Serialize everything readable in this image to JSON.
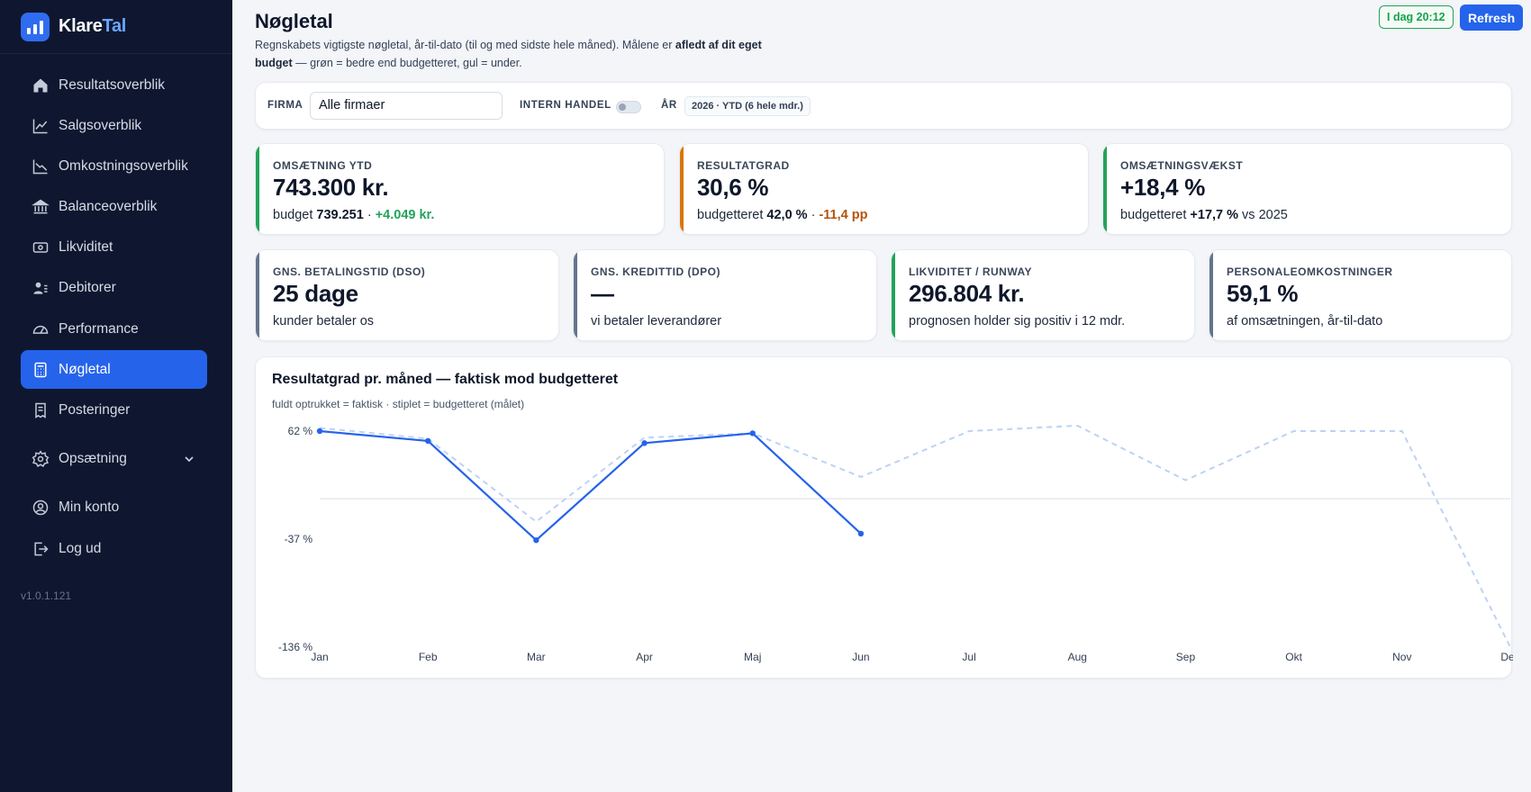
{
  "sidebar": {
    "brand_prefix": "Klare",
    "brand_suffix": "Tal",
    "items": [
      {
        "label": "Resultatsoverblik",
        "icon": "home-icon"
      },
      {
        "label": "Salgsoverblik",
        "icon": "trend-up-icon"
      },
      {
        "label": "Omkostningsoverblik",
        "icon": "trend-down-icon"
      },
      {
        "label": "Balanceoverblik",
        "icon": "bank-icon"
      },
      {
        "label": "Likviditet",
        "icon": "cash-icon"
      },
      {
        "label": "Debitorer",
        "icon": "users-icon"
      },
      {
        "label": "Performance",
        "icon": "gauge-icon"
      },
      {
        "label": "Nøgletal",
        "icon": "calculator-icon",
        "active": true
      },
      {
        "label": "Posteringer",
        "icon": "receipt-icon"
      },
      {
        "label": "Opsætning",
        "icon": "gear-icon"
      },
      {
        "label": "Min konto",
        "icon": "user-circle-icon"
      },
      {
        "label": "Log ud",
        "icon": "logout-icon"
      }
    ],
    "version": "v1.0.1.121"
  },
  "header": {
    "title": "Nøgletal",
    "subtitle_part1": "Regnskabets vigtigste nøgletal, år-til-dato (til og med sidste hele måned). Målene er ",
    "subtitle_bold1": "afledt af dit eget budget",
    "subtitle_part2": " — grøn = bedre end budgetteret, gul = under.",
    "timestamp": "I dag 20:12",
    "refresh_label": "Refresh"
  },
  "filters": {
    "company_label": "FIRMA",
    "company_value": "Alle firmaer",
    "intern_label": "INTERN HANDEL",
    "year_label": "ÅR",
    "year_value": "2026 · YTD (6 hele mdr.)"
  },
  "kpis_top": [
    {
      "label": "Omsætning YTD",
      "value": "743.300 kr.",
      "sub_pre": "budget ",
      "sub_bold": "739.251",
      "sub_sep": " · ",
      "sub_delta": "+4.049 kr.",
      "delta_class": "pos",
      "accent": "#22a35a"
    },
    {
      "label": "Resultatgrad",
      "value": "30,6 %",
      "sub_pre": "budgetteret ",
      "sub_bold": "42,0 %",
      "sub_sep": " · ",
      "sub_delta": "-11,4 pp",
      "delta_class": "neg",
      "accent": "#d97706"
    },
    {
      "label": "Omsætningsvækst",
      "value": "+18,4 %",
      "sub_pre": "budgetteret ",
      "sub_bold": "+17,7 %",
      "sub_sep": " vs 2025",
      "sub_delta": "",
      "delta_class": "",
      "accent": "#22a35a"
    }
  ],
  "kpis_bottom": [
    {
      "label": "Gns. betalingstid (DSO)",
      "value": "25 dage",
      "sub": "kunder betaler os",
      "accent": "#64748b"
    },
    {
      "label": "Gns. kredittid (DPO)",
      "value": "—",
      "sub": "vi betaler leverandører",
      "accent": "#64748b"
    },
    {
      "label": "Likviditet / runway",
      "value": "296.804 kr.",
      "sub": "prognosen holder sig positiv i 12 mdr.",
      "accent": "#22a35a"
    },
    {
      "label": "Personaleomkostninger",
      "value": "59,1 %",
      "sub": "af omsætningen, år-til-dato",
      "accent": "#64748b"
    }
  ],
  "chart_data": {
    "type": "line",
    "title": "Resultatgrad pr. måned — faktisk mod budgetteret",
    "subtitle": "fuldt optrukket = faktisk · stiplet = budgetteret (målet)",
    "categories": [
      "Jan",
      "Feb",
      "Mar",
      "Apr",
      "Maj",
      "Jun",
      "Jul",
      "Aug",
      "Sep",
      "Okt",
      "Nov",
      "Dec"
    ],
    "y_ticks": [
      62,
      -37,
      -136
    ],
    "y_tick_labels": [
      "62 %",
      "-37 %",
      "-136 %"
    ],
    "ylim": [
      -136,
      62
    ],
    "zero_line": true,
    "series": [
      {
        "style": "actual",
        "color": "#2563eb",
        "values": [
          62,
          53,
          -38,
          51,
          60,
          -32,
          null,
          null,
          null,
          null,
          null,
          null
        ]
      },
      {
        "style": "budget",
        "color": "#bcd2f7",
        "values": [
          65,
          55,
          -21,
          56,
          60,
          20,
          62,
          67,
          17,
          62,
          62,
          -136
        ]
      }
    ]
  }
}
